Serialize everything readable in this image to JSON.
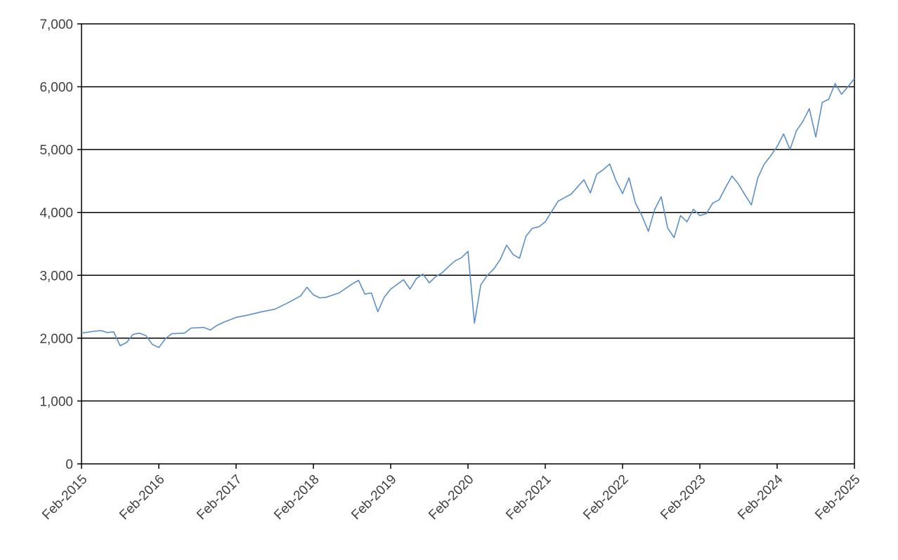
{
  "chart_data": {
    "type": "line",
    "title": "",
    "xlabel": "",
    "ylabel": "",
    "ylim": [
      0,
      7000
    ],
    "xlim": [
      "2015-02",
      "2025-02"
    ],
    "grid": true,
    "legend": "none",
    "y_ticks": [
      0,
      1000,
      2000,
      3000,
      4000,
      5000,
      6000,
      7000
    ],
    "y_tick_labels": [
      "0",
      "1,000",
      "2,000",
      "3,000",
      "4,000",
      "5,000",
      "6,000",
      "7,000"
    ],
    "x_ticks": [
      "2015-02",
      "2016-02",
      "2017-02",
      "2018-02",
      "2019-02",
      "2020-02",
      "2021-02",
      "2022-02",
      "2023-02",
      "2024-02",
      "2025-02"
    ],
    "x_tick_labels": [
      "Feb-2015",
      "Feb-2016",
      "Feb-2017",
      "Feb-2018",
      "Feb-2019",
      "Feb-2020",
      "Feb-2021",
      "Feb-2022",
      "Feb-2023",
      "Feb-2024",
      "Feb-2025"
    ],
    "series": [
      {
        "color": "#5b8fc7",
        "points": [
          [
            "2015-02",
            2080
          ],
          [
            "2015-04",
            2110
          ],
          [
            "2015-05",
            2120
          ],
          [
            "2015-06",
            2090
          ],
          [
            "2015-07",
            2100
          ],
          [
            "2015-08",
            1880
          ],
          [
            "2015-09",
            1930
          ],
          [
            "2015-10",
            2060
          ],
          [
            "2015-11",
            2080
          ],
          [
            "2015-12",
            2040
          ],
          [
            "2016-01",
            1900
          ],
          [
            "2016-02",
            1850
          ],
          [
            "2016-03",
            1990
          ],
          [
            "2016-04",
            2070
          ],
          [
            "2016-06",
            2080
          ],
          [
            "2016-07",
            2160
          ],
          [
            "2016-09",
            2170
          ],
          [
            "2016-10",
            2130
          ],
          [
            "2016-11",
            2200
          ],
          [
            "2016-12",
            2250
          ],
          [
            "2017-02",
            2330
          ],
          [
            "2017-04",
            2370
          ],
          [
            "2017-06",
            2420
          ],
          [
            "2017-08",
            2460
          ],
          [
            "2017-10",
            2560
          ],
          [
            "2017-12",
            2670
          ],
          [
            "2018-01",
            2810
          ],
          [
            "2018-02",
            2690
          ],
          [
            "2018-03",
            2640
          ],
          [
            "2018-04",
            2650
          ],
          [
            "2018-06",
            2720
          ],
          [
            "2018-08",
            2860
          ],
          [
            "2018-09",
            2920
          ],
          [
            "2018-10",
            2700
          ],
          [
            "2018-11",
            2720
          ],
          [
            "2018-12",
            2420
          ],
          [
            "2019-01",
            2650
          ],
          [
            "2019-02",
            2780
          ],
          [
            "2019-04",
            2930
          ],
          [
            "2019-05",
            2780
          ],
          [
            "2019-06",
            2950
          ],
          [
            "2019-07",
            3020
          ],
          [
            "2019-08",
            2880
          ],
          [
            "2019-09",
            2980
          ],
          [
            "2019-10",
            3040
          ],
          [
            "2019-11",
            3140
          ],
          [
            "2019-12",
            3230
          ],
          [
            "2020-01",
            3280
          ],
          [
            "2020-02",
            3380
          ],
          [
            "2020-03",
            2240
          ],
          [
            "2020-04",
            2850
          ],
          [
            "2020-05",
            3000
          ],
          [
            "2020-06",
            3100
          ],
          [
            "2020-07",
            3250
          ],
          [
            "2020-08",
            3480
          ],
          [
            "2020-09",
            3330
          ],
          [
            "2020-10",
            3270
          ],
          [
            "2020-11",
            3620
          ],
          [
            "2020-12",
            3750
          ],
          [
            "2021-01",
            3770
          ],
          [
            "2021-02",
            3850
          ],
          [
            "2021-04",
            4180
          ],
          [
            "2021-06",
            4290
          ],
          [
            "2021-08",
            4520
          ],
          [
            "2021-09",
            4310
          ],
          [
            "2021-10",
            4610
          ],
          [
            "2021-11",
            4680
          ],
          [
            "2021-12",
            4770
          ],
          [
            "2022-01",
            4500
          ],
          [
            "2022-02",
            4300
          ],
          [
            "2022-03",
            4550
          ],
          [
            "2022-04",
            4150
          ],
          [
            "2022-05",
            3950
          ],
          [
            "2022-06",
            3700
          ],
          [
            "2022-07",
            4050
          ],
          [
            "2022-08",
            4250
          ],
          [
            "2022-09",
            3750
          ],
          [
            "2022-10",
            3600
          ],
          [
            "2022-11",
            3950
          ],
          [
            "2022-12",
            3850
          ],
          [
            "2023-01",
            4050
          ],
          [
            "2023-02",
            3950
          ],
          [
            "2023-03",
            3980
          ],
          [
            "2023-04",
            4150
          ],
          [
            "2023-05",
            4200
          ],
          [
            "2023-06",
            4400
          ],
          [
            "2023-07",
            4580
          ],
          [
            "2023-08",
            4450
          ],
          [
            "2023-09",
            4280
          ],
          [
            "2023-10",
            4120
          ],
          [
            "2023-11",
            4550
          ],
          [
            "2023-12",
            4770
          ],
          [
            "2024-01",
            4900
          ],
          [
            "2024-02",
            5050
          ],
          [
            "2024-03",
            5250
          ],
          [
            "2024-04",
            5000
          ],
          [
            "2024-05",
            5300
          ],
          [
            "2024-06",
            5450
          ],
          [
            "2024-07",
            5650
          ],
          [
            "2024-08",
            5200
          ],
          [
            "2024-09",
            5750
          ],
          [
            "2024-10",
            5800
          ],
          [
            "2024-11",
            6050
          ],
          [
            "2024-12",
            5880
          ],
          [
            "2025-01",
            6000
          ],
          [
            "2025-02",
            6130
          ]
        ]
      }
    ]
  }
}
